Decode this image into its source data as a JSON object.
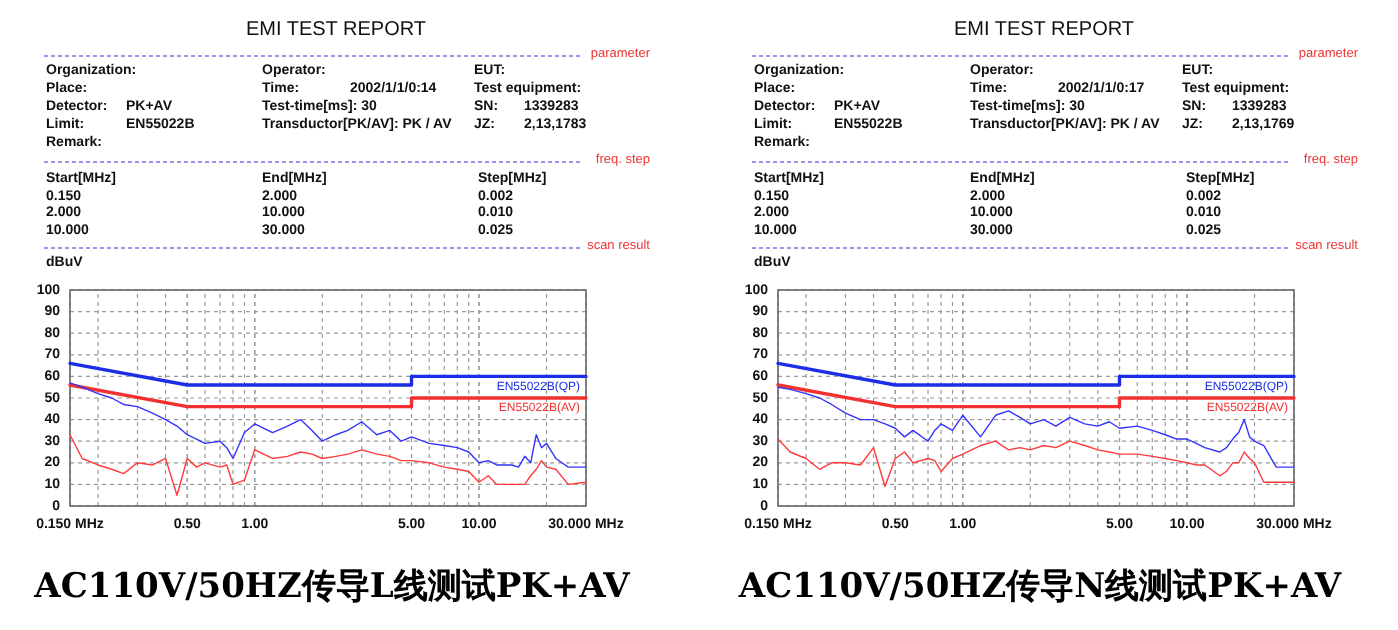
{
  "chart_data": [
    {
      "type": "line",
      "title": "EMI TEST REPORT",
      "ylabel": "dBuV",
      "log": "x",
      "grid": true,
      "xlim": [
        0.15,
        30
      ],
      "ylim": [
        0,
        100
      ],
      "xticks": [
        {
          "value": 0.15,
          "label": "0.150 MHz"
        },
        {
          "value": 0.5,
          "label": "0.50"
        },
        {
          "value": 1,
          "label": "1.00"
        },
        {
          "value": 5,
          "label": "5.00"
        },
        {
          "value": 10,
          "label": "10.00"
        },
        {
          "value": 30,
          "label": "30.000 MHz"
        }
      ],
      "yticks": [
        0,
        10,
        20,
        30,
        40,
        50,
        60,
        70,
        80,
        90,
        100
      ],
      "annotations": [
        "parameter",
        "Organization:",
        "Operator:",
        "EUT:",
        "Place:",
        "Time:",
        "2002/1/1/0:14",
        "Test equipment:",
        "Detector:",
        "PK+AV",
        "Test-time[ms]: 30",
        "SN:",
        "1339283",
        "Limit:",
        "EN55022B",
        "Transductor[PK/AV]: PK  /  AV",
        "JZ:",
        "2,13,1783",
        "Remark:",
        "freq. step",
        "Start[MHz]",
        "End[MHz]",
        "Step[MHz]",
        "0.150",
        "2.000",
        "0.002",
        "2.000",
        "10.000",
        "0.010",
        "10.000",
        "30.000",
        "0.025",
        "scan result",
        "AC110V/50HZ传导L线测试PK+AV"
      ],
      "series": [
        {
          "color": "#3333ff",
          "x": [
            0.15,
            0.17,
            0.2,
            0.23,
            0.26,
            0.3,
            0.35,
            0.4,
            0.45,
            0.5,
            0.55,
            0.6,
            0.7,
            0.75,
            0.8,
            0.9,
            1.0,
            1.2,
            1.4,
            1.6,
            1.8,
            2.0,
            2.3,
            2.6,
            3.0,
            3.5,
            4,
            4.5,
            5,
            6,
            7,
            8,
            9,
            10,
            11,
            12,
            14,
            15,
            16,
            17,
            18,
            19,
            20,
            22,
            25,
            30
          ],
          "values": [
            57,
            55,
            52,
            50,
            47,
            46,
            43,
            40,
            37,
            33,
            31,
            29,
            30,
            27,
            22,
            34,
            38,
            34,
            37,
            40,
            35,
            30,
            33,
            35,
            39,
            33,
            35,
            30,
            32,
            29,
            28,
            27,
            25,
            20,
            21,
            19,
            19,
            18,
            23,
            20,
            33,
            27,
            29,
            22,
            18,
            18
          ]
        },
        {
          "color": "#ff3b3b",
          "x": [
            0.15,
            0.17,
            0.2,
            0.23,
            0.26,
            0.3,
            0.35,
            0.4,
            0.45,
            0.5,
            0.55,
            0.6,
            0.7,
            0.75,
            0.8,
            0.9,
            1.0,
            1.2,
            1.4,
            1.6,
            1.8,
            2.0,
            2.3,
            2.6,
            3.0,
            3.5,
            4,
            4.5,
            5,
            6,
            7,
            8,
            9,
            10,
            11,
            12,
            14,
            15,
            16,
            17,
            18,
            19,
            20,
            22,
            25,
            30
          ],
          "values": [
            33,
            22,
            19,
            17,
            15,
            20,
            19,
            22,
            5,
            22,
            18,
            20,
            18,
            19,
            10,
            12,
            26,
            22,
            23,
            25,
            24,
            22,
            23,
            24,
            26,
            24,
            23,
            21,
            21,
            20,
            18,
            17,
            16,
            11,
            14,
            10,
            10,
            10,
            10,
            14,
            17,
            21,
            18,
            17,
            10,
            11
          ]
        },
        {
          "name": "EN55022B(QP)",
          "color": "#1a2ee6",
          "x": [
            0.15,
            0.5,
            5,
            5,
            30
          ],
          "values": [
            66,
            56,
            56,
            60,
            60
          ]
        },
        {
          "name": "EN55022B(AV)",
          "color": "#f23030",
          "x": [
            0.15,
            0.5,
            5,
            5,
            30
          ],
          "values": [
            56,
            46,
            46,
            50,
            50
          ]
        }
      ]
    },
    {
      "type": "line",
      "title": "EMI TEST REPORT",
      "ylabel": "dBuV",
      "log": "x",
      "grid": true,
      "xlim": [
        0.15,
        30
      ],
      "ylim": [
        0,
        100
      ],
      "xticks": [
        {
          "value": 0.15,
          "label": "0.150 MHz"
        },
        {
          "value": 0.5,
          "label": "0.50"
        },
        {
          "value": 1,
          "label": "1.00"
        },
        {
          "value": 5,
          "label": "5.00"
        },
        {
          "value": 10,
          "label": "10.00"
        },
        {
          "value": 30,
          "label": "30.000 MHz"
        }
      ],
      "yticks": [
        0,
        10,
        20,
        30,
        40,
        50,
        60,
        70,
        80,
        90,
        100
      ],
      "annotations": [
        "parameter",
        "Organization:",
        "Operator:",
        "EUT:",
        "Place:",
        "Time:",
        "2002/1/1/0:17",
        "Test equipment:",
        "Detector:",
        "PK+AV",
        "Test-time[ms]: 30",
        "SN:",
        "1339283",
        "Limit:",
        "EN55022B",
        "Transductor[PK/AV]: PK  /  AV",
        "JZ:",
        "2,13,1769",
        "Remark:",
        "freq. step",
        "Start[MHz]",
        "End[MHz]",
        "Step[MHz]",
        "0.150",
        "2.000",
        "0.002",
        "2.000",
        "10.000",
        "0.010",
        "10.000",
        "30.000",
        "0.025",
        "scan result",
        "AC110V/50HZ传导N线测试PK+AV"
      ],
      "series": [
        {
          "color": "#3333ff",
          "x": [
            0.15,
            0.17,
            0.2,
            0.23,
            0.26,
            0.3,
            0.35,
            0.4,
            0.45,
            0.5,
            0.55,
            0.6,
            0.7,
            0.75,
            0.8,
            0.9,
            1.0,
            1.2,
            1.4,
            1.6,
            1.8,
            2.0,
            2.3,
            2.6,
            3.0,
            3.5,
            4,
            4.5,
            5,
            6,
            7,
            8,
            9,
            10,
            11,
            12,
            14,
            15,
            16,
            17,
            18,
            19,
            20,
            22,
            25,
            30
          ],
          "values": [
            55,
            54,
            52,
            50,
            47,
            43,
            40,
            40,
            38,
            36,
            32,
            35,
            30,
            35,
            38,
            35,
            42,
            32,
            42,
            44,
            41,
            38,
            40,
            37,
            41,
            38,
            37,
            39,
            36,
            37,
            35,
            33,
            31,
            31,
            29,
            27,
            25,
            27,
            31,
            34,
            40,
            32,
            30,
            28,
            18,
            18
          ]
        },
        {
          "color": "#ff3b3b",
          "x": [
            0.15,
            0.17,
            0.2,
            0.23,
            0.26,
            0.3,
            0.35,
            0.4,
            0.45,
            0.5,
            0.55,
            0.6,
            0.7,
            0.75,
            0.8,
            0.9,
            1.0,
            1.2,
            1.4,
            1.6,
            1.8,
            2.0,
            2.3,
            2.6,
            3.0,
            3.5,
            4,
            4.5,
            5,
            6,
            7,
            8,
            9,
            10,
            11,
            12,
            14,
            15,
            16,
            17,
            18,
            19,
            20,
            22,
            25,
            30
          ],
          "values": [
            31,
            25,
            22,
            17,
            20,
            20,
            19,
            27,
            9,
            22,
            25,
            20,
            22,
            21,
            16,
            22,
            24,
            28,
            30,
            26,
            27,
            26,
            28,
            27,
            30,
            28,
            26,
            25,
            24,
            24,
            23,
            22,
            21,
            20,
            19,
            19,
            14,
            16,
            20,
            20,
            25,
            22,
            20,
            11,
            11,
            11
          ]
        },
        {
          "name": "EN55022B(QP)",
          "color": "#1a2ee6",
          "x": [
            0.15,
            0.5,
            5,
            5,
            30
          ],
          "values": [
            66,
            56,
            56,
            60,
            60
          ]
        },
        {
          "name": "EN55022B(AV)",
          "color": "#f23030",
          "x": [
            0.15,
            0.5,
            5,
            5,
            30
          ],
          "values": [
            56,
            46,
            46,
            50,
            50
          ]
        }
      ]
    }
  ]
}
